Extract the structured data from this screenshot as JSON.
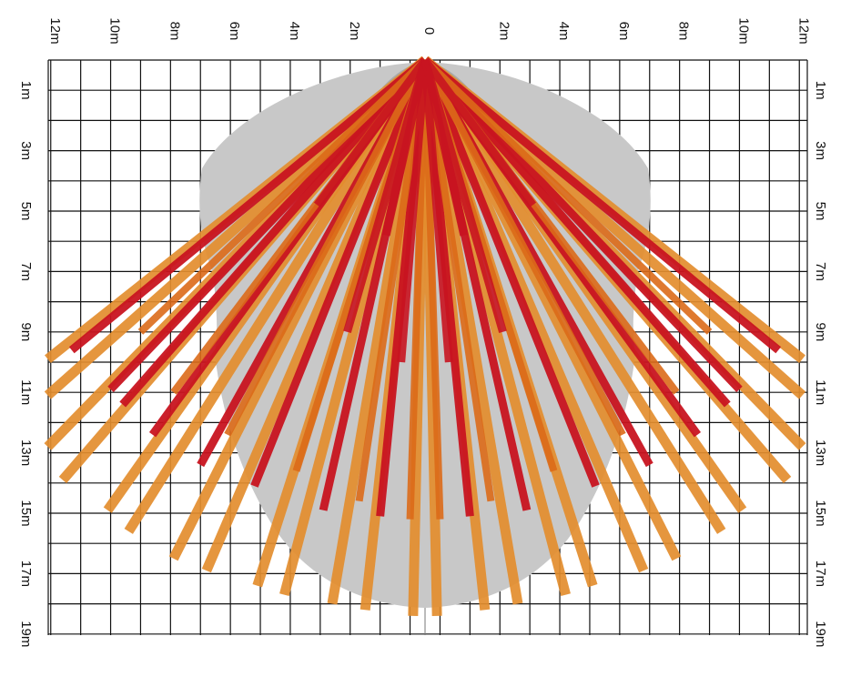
{
  "x_axis": {
    "labels": [
      "12m",
      "10m",
      "8m",
      "6m",
      "4m",
      "2m",
      "0",
      "2m",
      "4m",
      "6m",
      "8m",
      "10m",
      "12m"
    ],
    "values": [
      -12,
      -10,
      -8,
      -6,
      -4,
      -2,
      0,
      2,
      4,
      6,
      8,
      10,
      12
    ]
  },
  "y_axis": {
    "labels": [
      "1m",
      "3m",
      "5m",
      "7m",
      "9m",
      "11m",
      "13m",
      "15m",
      "17m",
      "19m"
    ],
    "values": [
      1,
      3,
      5,
      7,
      9,
      11,
      13,
      15,
      17,
      19
    ]
  },
  "colors": {
    "grid": "#111111",
    "coverage_area": "#c8c8c8",
    "coverage_center": "#a9a9a9",
    "long_beam": "#e38d2e",
    "mid_beam": "#db6a18",
    "short_beam": "#c81420"
  },
  "detector_origin": {
    "x": 0,
    "y": 0
  },
  "beams": {
    "long": [
      {
        "x": -12.6,
        "y": 9.9
      },
      {
        "x": -12.6,
        "y": 11.1
      },
      {
        "x": -12.6,
        "y": 12.8
      },
      {
        "x": -12.1,
        "y": 13.9
      },
      {
        "x": -10.6,
        "y": 14.9
      },
      {
        "x": -9.9,
        "y": 15.6
      },
      {
        "x": -8.4,
        "y": 16.5
      },
      {
        "x": -7.3,
        "y": 16.9
      },
      {
        "x": -5.6,
        "y": 17.4
      },
      {
        "x": -4.7,
        "y": 17.7
      },
      {
        "x": -3.1,
        "y": 18.0
      },
      {
        "x": -2.0,
        "y": 18.2
      },
      {
        "x": -0.4,
        "y": 18.4
      },
      {
        "x": 0.4,
        "y": 18.4
      },
      {
        "x": 2.0,
        "y": 18.2
      },
      {
        "x": 3.1,
        "y": 18.0
      },
      {
        "x": 4.7,
        "y": 17.7
      },
      {
        "x": 5.6,
        "y": 17.4
      },
      {
        "x": 7.3,
        "y": 16.9
      },
      {
        "x": 8.4,
        "y": 16.5
      },
      {
        "x": 9.9,
        "y": 15.6
      },
      {
        "x": 10.6,
        "y": 14.9
      },
      {
        "x": 12.1,
        "y": 13.9
      },
      {
        "x": 12.6,
        "y": 12.8
      },
      {
        "x": 12.6,
        "y": 11.1
      },
      {
        "x": 12.6,
        "y": 9.9
      }
    ],
    "short": [
      {
        "x": -11.8,
        "y": 9.6
      },
      {
        "x": -10.5,
        "y": 10.9
      },
      {
        "x": -10.1,
        "y": 11.4
      },
      {
        "x": -9.1,
        "y": 12.4
      },
      {
        "x": -7.5,
        "y": 13.4
      },
      {
        "x": -5.7,
        "y": 14.1
      },
      {
        "x": -3.4,
        "y": 14.9
      },
      {
        "x": -1.5,
        "y": 15.1
      },
      {
        "x": 1.5,
        "y": 15.1
      },
      {
        "x": 3.4,
        "y": 14.9
      },
      {
        "x": 5.7,
        "y": 14.1
      },
      {
        "x": 7.5,
        "y": 13.4
      },
      {
        "x": 9.1,
        "y": 12.4
      },
      {
        "x": 10.1,
        "y": 11.4
      },
      {
        "x": 10.5,
        "y": 10.9
      },
      {
        "x": 11.8,
        "y": 9.6
      }
    ],
    "mid": [
      {
        "x": -9.5,
        "y": 9.0
      },
      {
        "x": -8.4,
        "y": 11.0
      },
      {
        "x": -6.6,
        "y": 12.4
      },
      {
        "x": -4.3,
        "y": 13.6
      },
      {
        "x": -2.2,
        "y": 14.6
      },
      {
        "x": -0.5,
        "y": 15.2
      },
      {
        "x": 0.5,
        "y": 15.2
      },
      {
        "x": 2.2,
        "y": 14.6
      },
      {
        "x": 4.3,
        "y": 13.6
      },
      {
        "x": 6.6,
        "y": 12.4
      },
      {
        "x": 8.4,
        "y": 11.0
      },
      {
        "x": 9.5,
        "y": 9.0
      }
    ],
    "near": [
      {
        "x": -3.6,
        "y": 4.8
      },
      {
        "x": -1.3,
        "y": 5.8
      },
      {
        "x": 1.3,
        "y": 5.8
      },
      {
        "x": 3.6,
        "y": 4.8
      },
      {
        "x": -2.6,
        "y": 9.0
      },
      {
        "x": -0.8,
        "y": 10.0
      },
      {
        "x": 0.8,
        "y": 10.0
      },
      {
        "x": 2.6,
        "y": 9.0
      }
    ]
  }
}
